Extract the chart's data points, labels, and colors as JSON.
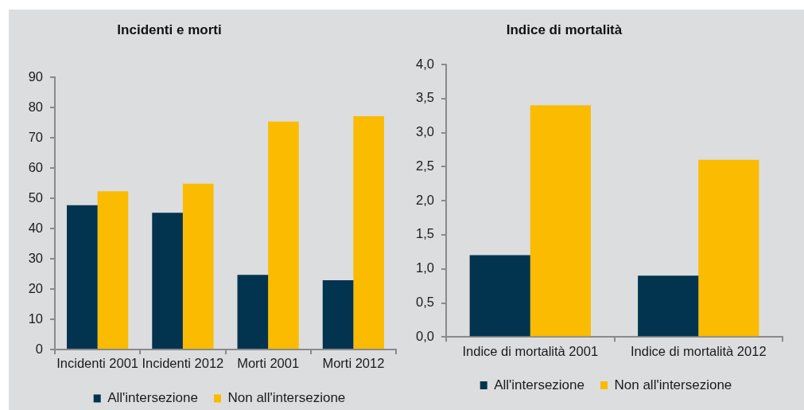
{
  "chart_data": [
    {
      "type": "bar",
      "title": "Incidenti e morti",
      "categories": [
        "Incidenti 2001",
        "Incidenti 2012",
        "Morti 2001",
        "Morti 2012"
      ],
      "series": [
        {
          "name": "All'intersezione",
          "color": "#02344f",
          "values": [
            47.7,
            45.2,
            24.7,
            22.9
          ]
        },
        {
          "name": "Non all'intersezione",
          "color": "#fabb00",
          "values": [
            52.3,
            54.8,
            75.3,
            77.1
          ]
        }
      ],
      "ylim": [
        0,
        90
      ],
      "yticks": [
        0,
        10,
        20,
        30,
        40,
        50,
        60,
        70,
        80,
        90
      ],
      "legend": "bottom"
    },
    {
      "type": "bar",
      "title": "Indice di mortalità",
      "categories": [
        "Indice di mortalità 2001",
        "Indice di mortalità 2012"
      ],
      "series": [
        {
          "name": "All'intersezione",
          "color": "#02344f",
          "values": [
            1.2,
            0.9
          ]
        },
        {
          "name": "Non all'intersezione",
          "color": "#fabb00",
          "values": [
            3.4,
            2.6
          ]
        }
      ],
      "ylim": [
        0,
        4
      ],
      "yticks": [
        {
          "value": 0,
          "label": "0,0"
        },
        {
          "value": 0.5,
          "label": "0,5"
        },
        {
          "value": 1,
          "label": "1,0"
        },
        {
          "value": 1.5,
          "label": "1,5"
        },
        {
          "value": 2,
          "label": "2,0"
        },
        {
          "value": 2.5,
          "label": "2,5"
        },
        {
          "value": 3,
          "label": "3,0"
        },
        {
          "value": 3.5,
          "label": "3,5"
        },
        {
          "value": 4,
          "label": "4,0"
        }
      ],
      "legend": "bottom"
    }
  ]
}
